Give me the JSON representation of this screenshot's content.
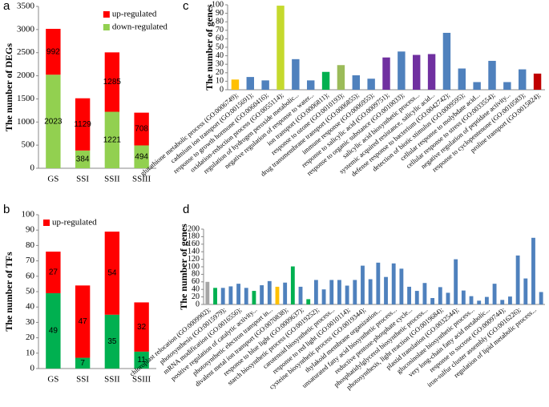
{
  "chart_data": [
    {
      "panel": "a",
      "type": "stacked_bar",
      "ylabel": "The number of DEGs",
      "categories": [
        "GS",
        "SSI",
        "SSII",
        "SSIII"
      ],
      "series": [
        {
          "name": "down-regulated",
          "color": "#92d050",
          "values": [
            2023,
            384,
            1221,
            494
          ]
        },
        {
          "name": "up-regulated",
          "color": "#ff0000",
          "values": [
            992,
            1129,
            1285,
            708
          ]
        }
      ],
      "ylim": [
        0,
        3500
      ],
      "yticks": [
        0,
        500,
        1000,
        1500,
        2000,
        2500,
        3000,
        3500
      ],
      "legend": "upper right"
    },
    {
      "panel": "b",
      "type": "stacked_bar",
      "ylabel": "The number of TFs",
      "categories": [
        "GS",
        "SSI",
        "SSII",
        "SSIII"
      ],
      "series": [
        {
          "color": "#00b050",
          "values": [
            49,
            7,
            35,
            11
          ]
        },
        {
          "name": "up-regulated",
          "color": "#ff0000",
          "values": [
            27,
            47,
            54,
            32
          ]
        }
      ],
      "ylim": [
        0,
        100
      ],
      "yticks": [
        0,
        10,
        20,
        30,
        40,
        50,
        60,
        70,
        80,
        90,
        100
      ],
      "legend": "upper left"
    },
    {
      "panel": "c",
      "type": "bar",
      "ylabel": "The number of genes",
      "categories": [
        "glutathione metabolic process (GO:0006749);",
        "cadmium ion transport (GO:0015691);",
        "response to growth hormone (GO:0060416);",
        "oxidation-reduction process (GO:0055114);",
        "regulation of hydrogen peroxide metabolic...",
        "negative regulation of response to water...",
        "ion transport (GO:0006811);",
        "response to ozone (GO:0010193);",
        "drug transmembrane transport (GO:0006855);",
        "immune response (GO:0006955);",
        "response to salicylic acid (GO:0009751);",
        "response to organic substance (GO:0010033);",
        "salicylic acid biosynthetic process...",
        "systemic acquired resistance, salicylic acid...",
        "defense response to bacterium (GO:0042742);",
        "detection of biotic stimulus (GO:0009595);",
        "cellular response to molybdate acid...",
        "cellular response to stress (GO:0033554);",
        "negative regulation of peptidase activity...",
        "response to cyclopentenone (GO:0010583);",
        "proline transport (GO:0015824);"
      ],
      "values": [
        12,
        15,
        11,
        99,
        36,
        11,
        21,
        29,
        17,
        13,
        38,
        45,
        41,
        42,
        67,
        25,
        9,
        34,
        9,
        24,
        19
      ],
      "colors": [
        "#ffc000",
        "#4f81bd",
        "#4f81bd",
        "#c5d92d",
        "#4f81bd",
        "#4f81bd",
        "#00b050",
        "#9bbb59",
        "#4f81bd",
        "#4f81bd",
        "#7030a0",
        "#4f81bd",
        "#7030a0",
        "#7030a0",
        "#4f81bd",
        "#4f81bd",
        "#4f81bd",
        "#4f81bd",
        "#4f81bd",
        "#4f81bd",
        "#c00000"
      ],
      "ylim": [
        0,
        100
      ],
      "yticks": [
        0,
        10,
        20,
        30,
        40,
        50,
        60,
        70,
        80,
        90,
        100
      ]
    },
    {
      "panel": "d",
      "type": "bar",
      "ylabel": "The number of genes",
      "categories": [
        "chloroplast relocation (GO:0009902);",
        null,
        "photosynthesis (GO:0015979);",
        null,
        "mRNA modification (GO:0016556);",
        null,
        "positive regulation of catalytic activity...",
        null,
        "photosynthetic electron transport in...",
        null,
        "divalent metal ion transport (GO:0070838);",
        null,
        "response to blue light (GO:0009637);",
        null,
        "starch biosynthetic process (GO:0019252);",
        null,
        "carotenoid biosynthetic process...",
        null,
        "response to red light (GO:0010114);",
        null,
        "cysteine biosynthetic process (GO:0019344);",
        null,
        "thylakoid membrane organization...",
        null,
        "unsaturated fatty acid biosynthetic process...",
        null,
        "reductive pentose-phosphate cycle...",
        null,
        "phosphatidylglycerol biosynthetic process...",
        null,
        "photosynthesis, light reaction (GO:0019684);",
        null,
        "plastid translation (GO:0032544);",
        null,
        "glucosinolate biosynthetic process...",
        null,
        "very long-chain fatty acid metabolic...",
        null,
        "response to sucrose (GO:0009744);",
        null,
        "iron-sulfur cluster assembly (GO:0016226);",
        null,
        "regulation of lipid metabolic process...",
        null
      ],
      "values": [
        60,
        44,
        44,
        48,
        55,
        44,
        36,
        51,
        62,
        47,
        58,
        101,
        47,
        14,
        65,
        40,
        65,
        65,
        50,
        65,
        103,
        67,
        111,
        73,
        109,
        95,
        47,
        36,
        57,
        17,
        46,
        31,
        120,
        37,
        22,
        10,
        20,
        55,
        12,
        21,
        130,
        69,
        177,
        33
      ],
      "colors": [
        "#a5a5a5",
        "#00b050",
        "#4f81bd",
        "#4f81bd",
        "#4f81bd",
        "#4f81bd",
        "#00b050",
        "#4f81bd",
        "#4f81bd",
        "#ffc000",
        "#4f81bd",
        "#00b050",
        "#4f81bd",
        "#00b050",
        "#4f81bd",
        "#4f81bd",
        "#4f81bd",
        "#4f81bd",
        "#4f81bd",
        "#4f81bd",
        "#4f81bd",
        "#4f81bd",
        "#4f81bd",
        "#4f81bd",
        "#4f81bd",
        "#4f81bd",
        "#4f81bd",
        "#4f81bd",
        "#4f81bd",
        "#4f81bd",
        "#4f81bd",
        "#4f81bd",
        "#4f81bd",
        "#4f81bd",
        "#4f81bd",
        "#4f81bd",
        "#4f81bd",
        "#4f81bd",
        "#4f81bd",
        "#4f81bd",
        "#4f81bd",
        "#4f81bd",
        "#4f81bd",
        "#4f81bd"
      ],
      "ylim": [
        0,
        200
      ],
      "yticks": [
        0,
        20,
        40,
        60,
        80,
        100,
        120,
        140,
        160,
        180,
        200
      ]
    }
  ]
}
